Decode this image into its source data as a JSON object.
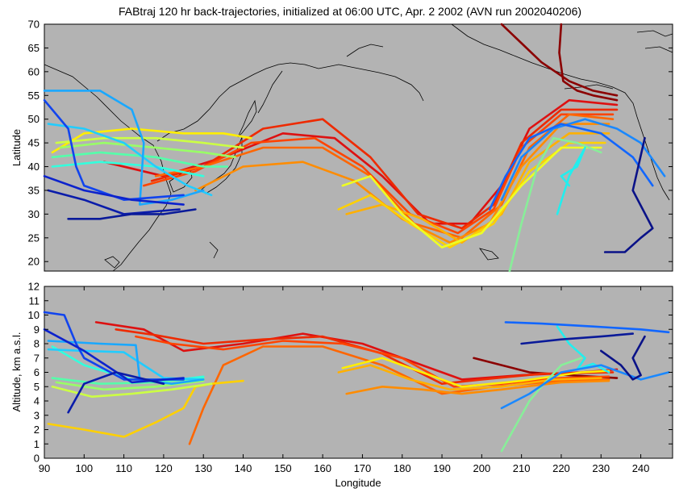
{
  "chart_data": [
    {
      "type": "line",
      "panel": "map",
      "title": "FABtraj 120 hr back-trajectories, initialized at 06:00 UTC, Apr. 2 2002 (AVN run 2002040206)",
      "xlabel": "",
      "ylabel": "Latitude",
      "xlim": [
        90,
        248
      ],
      "ylim": [
        18,
        70
      ],
      "xticks": [],
      "yticks": [
        20,
        25,
        30,
        35,
        40,
        45,
        50,
        55,
        60,
        65,
        70
      ],
      "grid": false,
      "background": "#b3b3b3",
      "series": [
        {
          "color": "#8b0000",
          "x": [
            220,
            219.5,
            220.5,
            224,
            228,
            234
          ],
          "y": [
            70,
            64,
            58,
            56,
            55,
            54
          ]
        },
        {
          "color": "#8b0000",
          "x": [
            205,
            210,
            215,
            222,
            228,
            234
          ],
          "y": [
            70,
            66,
            62,
            58,
            56,
            55
          ]
        },
        {
          "color": "#dd1111",
          "x": [
            105,
            120,
            135,
            150,
            163,
            175,
            187,
            197,
            205,
            212,
            222,
            234
          ],
          "y": [
            41,
            38,
            42,
            47,
            46,
            38,
            28,
            28,
            36,
            48,
            54,
            53
          ]
        },
        {
          "color": "#ee2a00",
          "x": [
            117,
            130,
            145,
            160,
            172,
            184,
            195,
            203,
            210,
            220,
            234
          ],
          "y": [
            37,
            40,
            48,
            50,
            42,
            30,
            27,
            32,
            45,
            52,
            52
          ]
        },
        {
          "color": "#ff4400",
          "x": [
            115,
            128,
            142,
            158,
            170,
            182,
            194,
            203,
            210,
            220,
            233
          ],
          "y": [
            36,
            39,
            45,
            46,
            40,
            30,
            26,
            31,
            44,
            51,
            51
          ]
        },
        {
          "color": "#ff6600",
          "x": [
            118,
            130,
            145,
            160,
            172,
            183,
            195,
            205,
            212,
            222,
            233
          ],
          "y": [
            38,
            40,
            44,
            44,
            38,
            28,
            25,
            32,
            44,
            51,
            50
          ]
        },
        {
          "color": "#ff8c00",
          "x": [
            128,
            140,
            155,
            168,
            180,
            192,
            202,
            210,
            220,
            232
          ],
          "y": [
            35,
            40,
            41,
            37,
            29,
            24,
            28,
            40,
            49,
            49
          ]
        },
        {
          "color": "#ffb000",
          "x": [
            166,
            175,
            185,
            195,
            205,
            212,
            222,
            232
          ],
          "y": [
            30,
            32,
            29,
            24,
            30,
            41,
            47,
            47
          ]
        },
        {
          "color": "#ffd000",
          "x": [
            164,
            172,
            182,
            192,
            203,
            212,
            222,
            231
          ],
          "y": [
            31,
            34,
            28,
            23,
            28,
            39,
            45,
            45
          ]
        },
        {
          "color": "#ffee00",
          "x": [
            92,
            100,
            112,
            125,
            135,
            142
          ],
          "y": [
            43,
            47,
            48,
            47,
            47,
            46
          ]
        },
        {
          "color": "#eeff22",
          "x": [
            165,
            172,
            180,
            190,
            200,
            210,
            220,
            230
          ],
          "y": [
            36,
            38,
            30,
            23,
            26,
            36,
            44,
            44
          ]
        },
        {
          "color": "#ccff44",
          "x": [
            93,
            105,
            118,
            130,
            140
          ],
          "y": [
            45,
            46,
            46,
            45,
            44
          ]
        },
        {
          "color": "#99ff66",
          "x": [
            94,
            105,
            118,
            130,
            138
          ],
          "y": [
            44,
            45,
            44,
            43,
            42
          ]
        },
        {
          "color": "#88ee99",
          "x": [
            207,
            210,
            214,
            218,
            224,
            230
          ],
          "y": [
            18,
            28,
            40,
            46,
            45,
            43
          ]
        },
        {
          "color": "#55ffaa",
          "x": [
            92,
            104,
            118,
            130,
            136
          ],
          "y": [
            42,
            43,
            42,
            40,
            40
          ]
        },
        {
          "color": "#33ffdd",
          "x": [
            92,
            104,
            118,
            130
          ],
          "y": [
            40,
            41,
            40,
            38
          ]
        },
        {
          "color": "#22eeee",
          "x": [
            219,
            222,
            226,
            224,
            220,
            222
          ],
          "y": [
            30,
            38,
            44,
            40,
            38,
            36
          ]
        },
        {
          "color": "#22ccff",
          "x": [
            91,
            100,
            110,
            118,
            126,
            132
          ],
          "y": [
            49,
            48,
            45,
            40,
            36,
            34
          ]
        },
        {
          "color": "#1aa8ff",
          "x": [
            90,
            104,
            112,
            115,
            114,
            122,
            130
          ],
          "y": [
            56,
            56,
            52,
            45,
            32,
            33,
            35
          ]
        },
        {
          "color": "#1a88ff",
          "x": [
            205,
            210,
            218,
            226,
            234,
            240,
            246
          ],
          "y": [
            33,
            42,
            48,
            50,
            48,
            45,
            38
          ]
        },
        {
          "color": "#1166ff",
          "x": [
            202,
            206,
            212,
            220,
            230,
            238,
            243
          ],
          "y": [
            31,
            38,
            46,
            49,
            47,
            42,
            36
          ]
        },
        {
          "color": "#1144ee",
          "x": [
            90,
            96,
            98,
            100,
            110,
            125
          ],
          "y": [
            54,
            48,
            40,
            36,
            33,
            34
          ]
        },
        {
          "color": "#0c22cc",
          "x": [
            90,
            100,
            112,
            125
          ],
          "y": [
            38,
            35,
            33,
            32
          ]
        },
        {
          "color": "#0a1caa",
          "x": [
            91,
            100,
            110,
            124
          ],
          "y": [
            35,
            33,
            30,
            31
          ]
        },
        {
          "color": "#0a1a99",
          "x": [
            96,
            104,
            112,
            120,
            128
          ],
          "y": [
            29,
            29,
            30,
            30,
            31
          ]
        },
        {
          "color": "#0a1288",
          "x": [
            231,
            236,
            240,
            243,
            238,
            241
          ],
          "y": [
            22,
            22,
            25,
            27,
            35,
            46
          ]
        }
      ]
    },
    {
      "type": "line",
      "panel": "altitude",
      "xlabel": "Longitude",
      "ylabel": "Altitude, km a.s.l.",
      "xlim": [
        90,
        248
      ],
      "ylim": [
        0,
        12
      ],
      "xticks": [
        90,
        100,
        110,
        120,
        130,
        140,
        150,
        160,
        170,
        180,
        190,
        200,
        210,
        220,
        230,
        240
      ],
      "yticks": [
        0,
        1,
        2,
        3,
        4,
        5,
        6,
        7,
        8,
        9,
        10,
        11,
        12
      ],
      "grid": false,
      "background": "#b3b3b3",
      "series": [
        {
          "color": "#8b0000",
          "x": [
            198,
            205,
            212,
            222,
            234
          ],
          "y": [
            7.0,
            6.5,
            6.0,
            5.8,
            5.6
          ]
        },
        {
          "color": "#dd1111",
          "x": [
            103,
            115,
            125,
            140,
            155,
            170,
            185,
            195,
            210,
            225,
            234
          ],
          "y": [
            9.5,
            9.0,
            7.5,
            8.0,
            8.7,
            8.0,
            6.5,
            5.5,
            5.8,
            6.0,
            6.2
          ]
        },
        {
          "color": "#ee2a00",
          "x": [
            108,
            118,
            130,
            145,
            160,
            175,
            190,
            200,
            215,
            233
          ],
          "y": [
            9.0,
            8.6,
            8.0,
            8.3,
            8.5,
            7.3,
            5.2,
            5.5,
            5.9,
            6.0
          ]
        },
        {
          "color": "#ff4400",
          "x": [
            113,
            122,
            135,
            150,
            165,
            180,
            193,
            205,
            220,
            232
          ],
          "y": [
            8.5,
            8.0,
            7.6,
            8.2,
            8.0,
            7.0,
            5.0,
            5.2,
            5.6,
            5.7
          ]
        },
        {
          "color": "#ff6600",
          "x": [
            126.5,
            130,
            135,
            145,
            160,
            175,
            190,
            203,
            220,
            232
          ],
          "y": [
            1.0,
            3.5,
            6.5,
            7.8,
            7.8,
            6.5,
            4.5,
            5.0,
            5.4,
            5.5
          ]
        },
        {
          "color": "#ff8c00",
          "x": [
            166,
            175,
            185,
            195,
            205,
            220,
            232
          ],
          "y": [
            4.5,
            5.0,
            4.8,
            4.5,
            4.8,
            5.3,
            5.4
          ]
        },
        {
          "color": "#ffb000",
          "x": [
            164,
            172,
            182,
            192,
            205,
            218,
            230
          ],
          "y": [
            6.0,
            6.5,
            5.5,
            4.8,
            5.0,
            5.5,
            5.6
          ]
        },
        {
          "color": "#ffd000",
          "x": [
            91,
            100,
            110,
            118,
            125,
            128,
            132,
            140
          ],
          "y": [
            2.4,
            2.0,
            1.5,
            2.5,
            3.5,
            5.0,
            5.2,
            5.4
          ]
        },
        {
          "color": "#ffee00",
          "x": [
            165,
            175,
            185,
            195,
            210,
            225,
            232
          ],
          "y": [
            6.3,
            7.0,
            6.0,
            5.0,
            5.4,
            6.0,
            6.1
          ]
        },
        {
          "color": "#ccff44",
          "x": [
            92,
            102,
            112,
            122,
            132
          ],
          "y": [
            5.0,
            4.3,
            4.5,
            4.8,
            5.2
          ]
        },
        {
          "color": "#99ff66",
          "x": [
            93,
            105,
            118,
            130
          ],
          "y": [
            5.3,
            4.8,
            5.0,
            5.4
          ]
        },
        {
          "color": "#88ee99",
          "x": [
            205,
            208,
            212,
            215,
            220,
            225
          ],
          "y": [
            0.5,
            2.0,
            4.0,
            5.0,
            6.5,
            7.0
          ]
        },
        {
          "color": "#55ffaa",
          "x": [
            92,
            104,
            118,
            130
          ],
          "y": [
            5.6,
            5.2,
            5.3,
            5.6
          ]
        },
        {
          "color": "#33ffdd",
          "x": [
            92,
            100,
            112,
            124,
            130
          ],
          "y": [
            7.8,
            6.5,
            5.5,
            5.5,
            5.7
          ]
        },
        {
          "color": "#22eeee",
          "x": [
            219,
            222,
            226,
            224,
            228,
            232
          ],
          "y": [
            9.2,
            8.0,
            7.0,
            6.2,
            6.6,
            6.0
          ]
        },
        {
          "color": "#22ccff",
          "x": [
            91,
            100,
            110,
            120,
            130
          ],
          "y": [
            7.6,
            7.5,
            7.4,
            5.6,
            5.5
          ]
        },
        {
          "color": "#1aa8ff",
          "x": [
            91,
            104,
            113,
            114,
            122,
            130
          ],
          "y": [
            8.2,
            8.0,
            7.9,
            5.5,
            5.2,
            5.5
          ]
        },
        {
          "color": "#1a88ff",
          "x": [
            205,
            212,
            220,
            230,
            240,
            247
          ],
          "y": [
            3.5,
            4.5,
            6.0,
            6.5,
            5.5,
            6.0
          ]
        },
        {
          "color": "#1166ff",
          "x": [
            206,
            215,
            228,
            240,
            247
          ],
          "y": [
            9.5,
            9.4,
            9.2,
            9.0,
            8.8
          ]
        },
        {
          "color": "#1144ee",
          "x": [
            90,
            95,
            98,
            100,
            110,
            125
          ],
          "y": [
            10.2,
            10.0,
            8.0,
            7.0,
            5.5,
            5.5
          ]
        },
        {
          "color": "#0c22cc",
          "x": [
            90,
            100,
            112,
            125
          ],
          "y": [
            9.0,
            7.5,
            5.3,
            5.6
          ]
        },
        {
          "color": "#0a1caa",
          "x": [
            96,
            100,
            108,
            120
          ],
          "y": [
            3.2,
            5.2,
            6.0,
            5.2
          ]
        },
        {
          "color": "#0a1a99",
          "x": [
            210,
            220,
            230,
            238
          ],
          "y": [
            8.0,
            8.3,
            8.5,
            8.7
          ]
        },
        {
          "color": "#0a1288",
          "x": [
            230,
            235,
            238,
            240,
            238,
            241
          ],
          "y": [
            7.5,
            6.5,
            5.5,
            5.8,
            7.0,
            8.5
          ]
        }
      ]
    }
  ]
}
